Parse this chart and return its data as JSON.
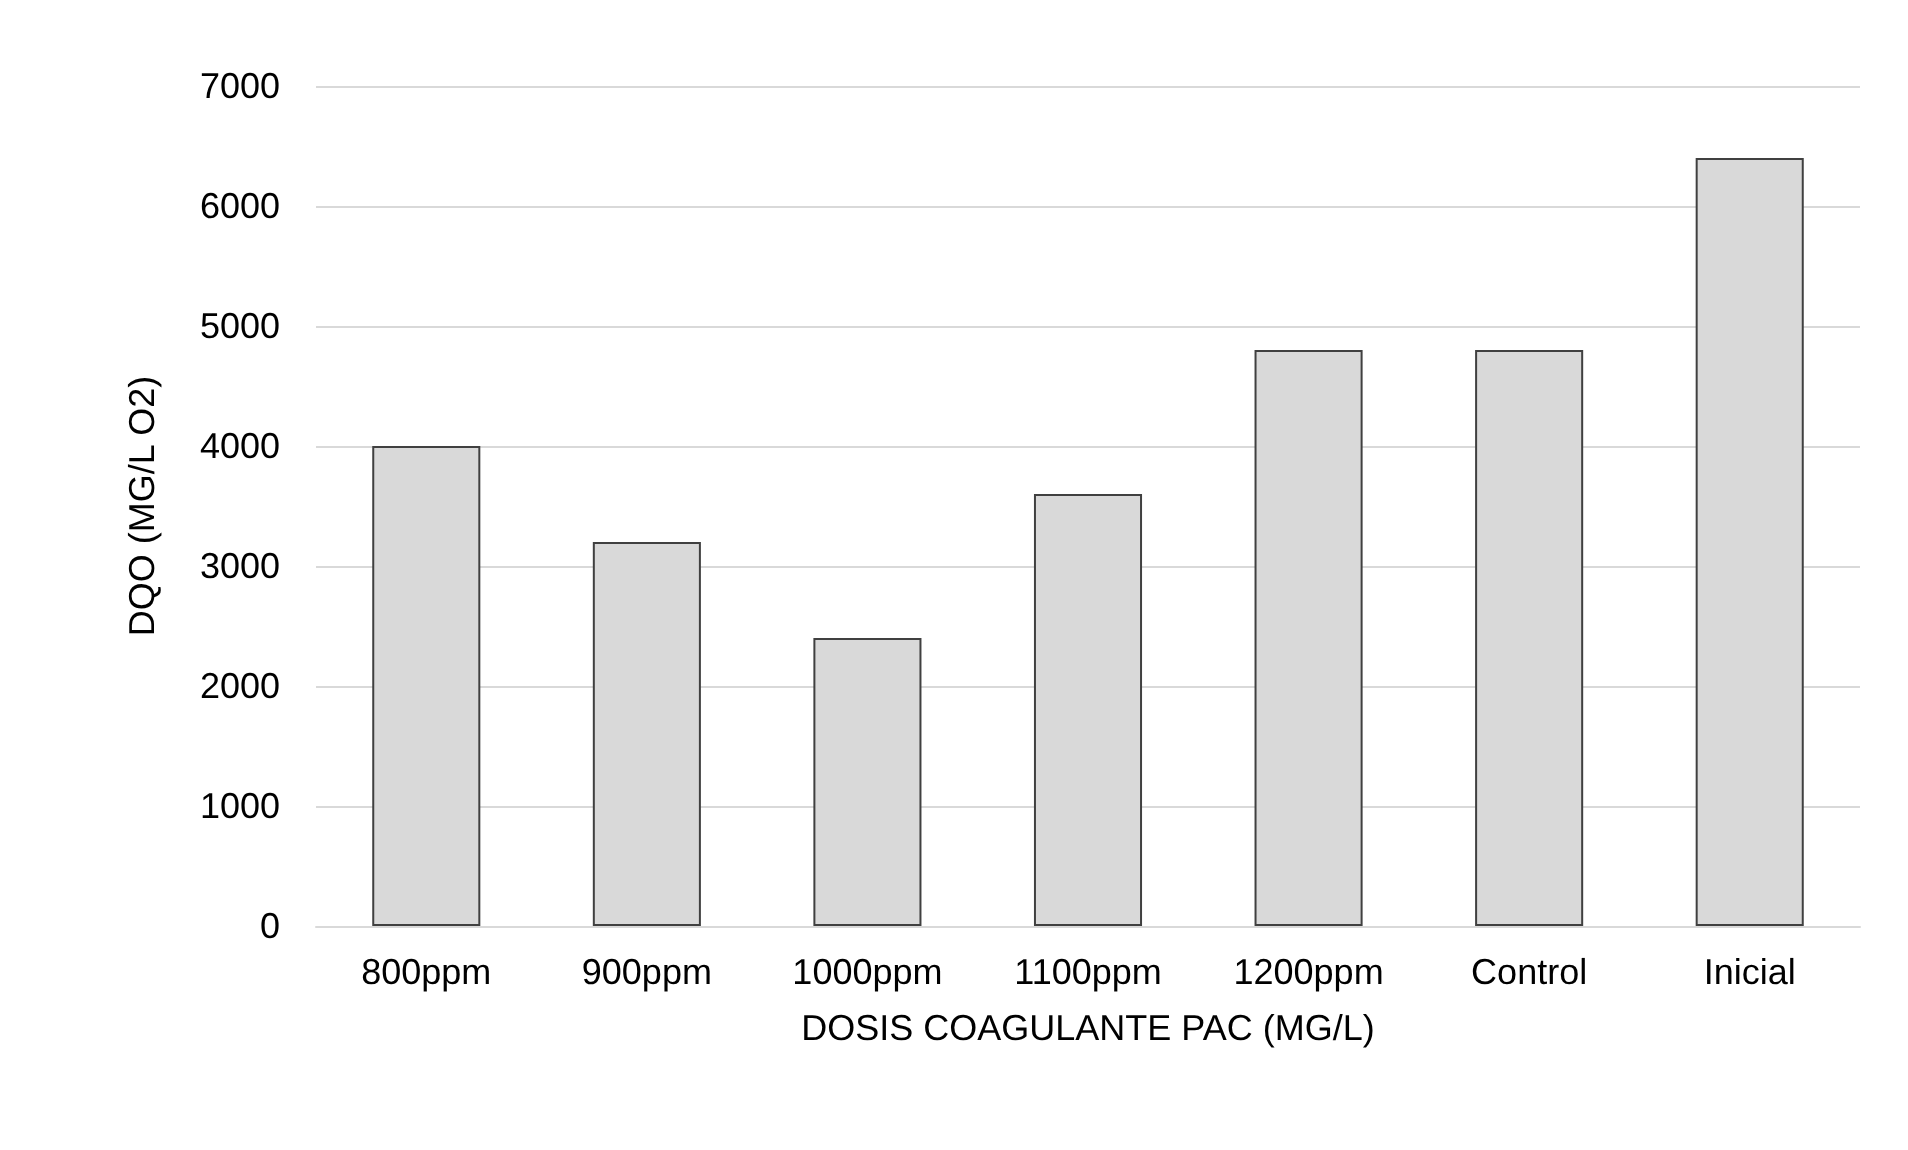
{
  "chart_data": {
    "type": "bar",
    "xlabel": "DOSIS COAGULANTE PAC (MG/L)",
    "ylabel": "DQO (MG/L O2)",
    "categories": [
      "800ppm",
      "900ppm",
      "1000ppm",
      "1100ppm",
      "1200ppm",
      "Control",
      "Inicial"
    ],
    "values": [
      4000,
      3200,
      2400,
      3600,
      4800,
      4800,
      6400
    ],
    "color": "#d9d9d9",
    "ylim": [
      0,
      7000
    ],
    "yticks": [
      0,
      1000,
      2000,
      3000,
      4000,
      5000,
      6000,
      7000
    ],
    "grid": "y"
  }
}
